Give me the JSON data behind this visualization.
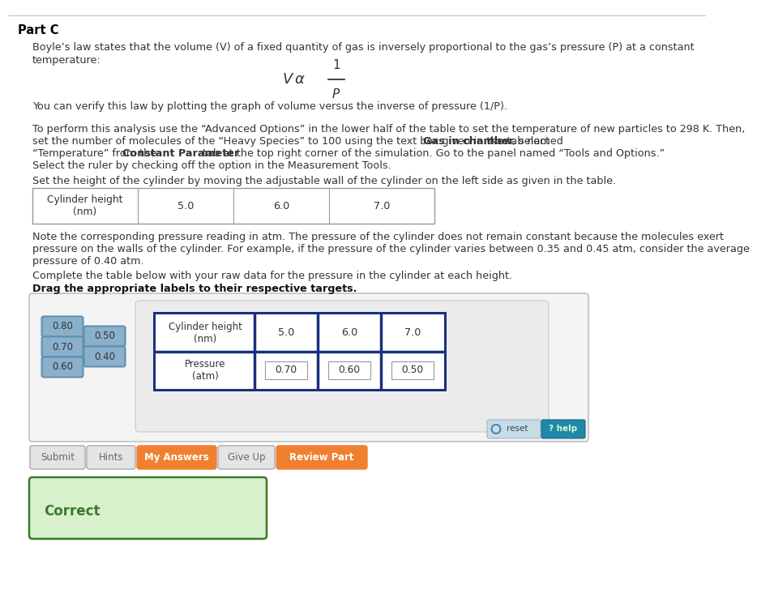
{
  "bg_color": "#ffffff",
  "part_c_label": "Part C",
  "body_text_color": "#333333",
  "intro_line1": "Boyle’s law states that the volume (V) of a fixed quantity of gas is inversely proportional to the gas’s pressure (P) at a constant",
  "intro_line2": "temperature:",
  "verify_line": "You can verify this law by plotting the graph of volume versus the inverse of pressure (1/P).",
  "instr_line1": "To perform this analysis use the “Advanced Options” in the lower half of the table to set the temperature of new particles to 298 K. Then,",
  "instr_line2a": "set the number of molecules of the “Heavy Species” to 100 using the text box given in the tab named ",
  "instr_line2b": "Gas in chamber",
  "instr_line2c": ". Now, select",
  "instr_line3a": "“Temperature” from the ",
  "instr_line3b": "Constant Parameter",
  "instr_line3c": " tab at the top right corner of the simulation. Go to the panel named “Tools and Options.”",
  "instr_line4": "Select the ruler by checking off the option in the Measurement Tools.",
  "set_height_line": "Set the height of the cylinder by moving the adjustable wall of the cylinder on the left side as given in the table.",
  "table1_vals": [
    "5.0",
    "6.0",
    "7.0"
  ],
  "note_line1": "Note the corresponding pressure reading in atm. The pressure of the cylinder does not remain constant because the molecules exert",
  "note_line2": "pressure on the walls of the cylinder. For example, if the pressure of the cylinder varies between 0.35 and 0.45 atm, consider the average",
  "note_line3": "pressure of 0.40 atm.",
  "complete_line": "Complete the table below with your raw data for the pressure in the cylinder at each height.",
  "drag_line": "Drag the appropriate labels to their respective targets.",
  "table2_heights": [
    "5.0",
    "6.0",
    "7.0"
  ],
  "table2_pressures": [
    "0.70",
    "0.60",
    "0.50"
  ],
  "drag_labels_col1": [
    "0.80",
    "0.70",
    "0.60"
  ],
  "drag_labels_col2": [
    "0.50",
    "0.40"
  ],
  "orange_color": "#f08030",
  "correct_box_color": "#d8f0cc",
  "correct_text_color": "#3a7a2a",
  "drag_box_bg": "#8ab0cc",
  "drag_box_border": "#6090b0",
  "table2_border": "#1a3080",
  "reset_bg": "#c8dce8",
  "help_bg": "#2288aa"
}
